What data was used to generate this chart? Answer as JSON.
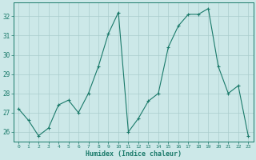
{
  "x": [
    0,
    1,
    2,
    3,
    4,
    5,
    6,
    7,
    8,
    9,
    10,
    11,
    12,
    13,
    14,
    15,
    16,
    17,
    18,
    19,
    20,
    21,
    22,
    23
  ],
  "y": [
    27.2,
    26.6,
    25.8,
    26.2,
    27.4,
    27.65,
    27.0,
    28.0,
    29.4,
    31.1,
    32.2,
    26.0,
    26.7,
    27.6,
    28.0,
    30.4,
    31.5,
    32.1,
    32.1,
    32.4,
    29.4,
    28.0,
    28.4,
    25.8
  ],
  "line_color": "#1a7a6a",
  "marker": "+",
  "marker_size": 3.5,
  "bg_color": "#cce8e8",
  "grid_major_color": "#aacccc",
  "grid_minor_color": "#bbdada",
  "xlabel": "Humidex (Indice chaleur)",
  "ylim": [
    25.5,
    32.7
  ],
  "xlim": [
    -0.5,
    23.5
  ],
  "yticks": [
    26,
    27,
    28,
    29,
    30,
    31,
    32
  ],
  "xticks": [
    0,
    1,
    2,
    3,
    4,
    5,
    6,
    7,
    8,
    9,
    10,
    11,
    12,
    13,
    14,
    15,
    16,
    17,
    18,
    19,
    20,
    21,
    22,
    23
  ],
  "tick_color": "#1a7a6a",
  "label_color": "#1a7a6a",
  "spine_color": "#1a7a6a",
  "xlabel_fontsize": 6.0,
  "ytick_fontsize": 5.5,
  "xtick_fontsize": 4.5
}
